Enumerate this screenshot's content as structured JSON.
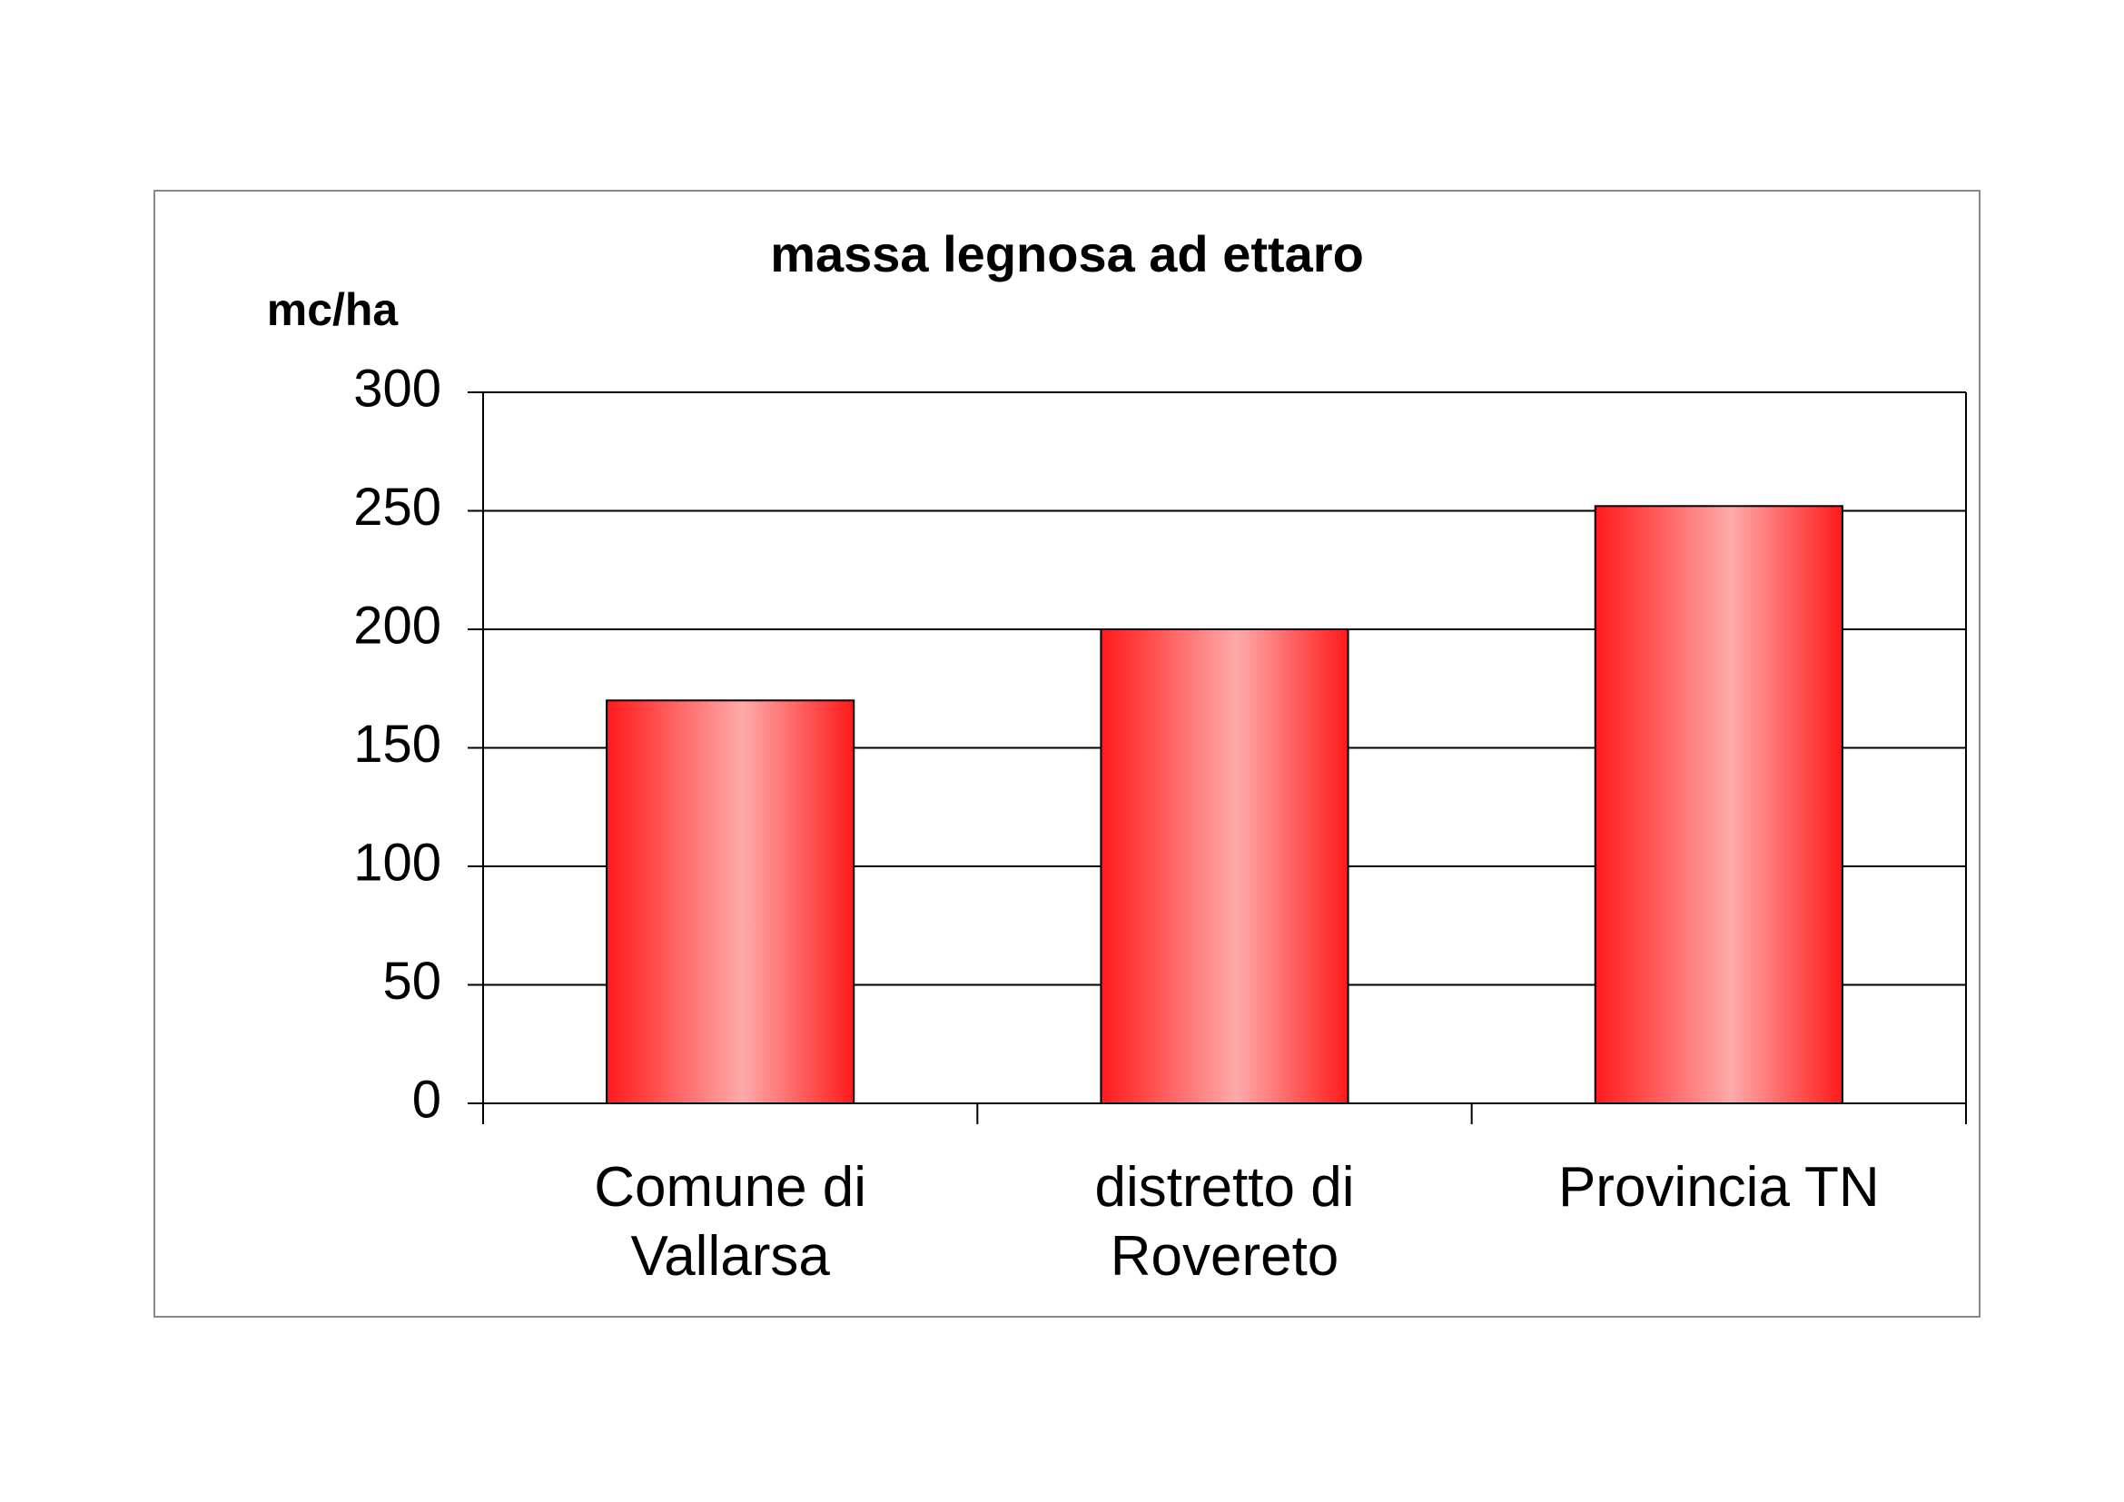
{
  "chart_data": {
    "type": "bar",
    "title": "massa legnosa ad ettaro",
    "y_label": "mc/ha",
    "categories": [
      "Comune di Vallarsa",
      "distretto di Rovereto",
      "Provincia TN"
    ],
    "values": [
      170,
      200,
      252
    ],
    "color": "#ff1a1a",
    "ylim": [
      0,
      300
    ],
    "yticks": [
      0,
      50,
      100,
      150,
      200,
      250,
      300
    ],
    "grid": true
  }
}
